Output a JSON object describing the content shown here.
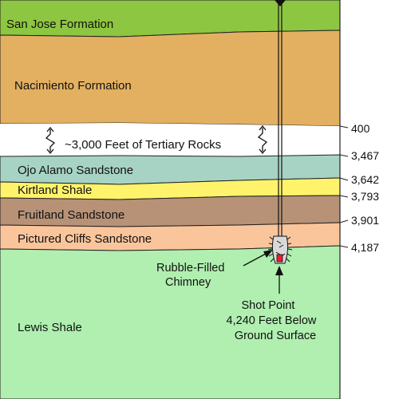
{
  "layers": [
    {
      "name": "San Jose Formation",
      "color": "#8dc640"
    },
    {
      "name": "Nacimiento Formation",
      "color": "#e3b061"
    },
    {
      "name": "~3,000 Feet of Tertiary Rocks",
      "color": "#ffffff"
    },
    {
      "name": "Ojo Alamo Sandstone",
      "color": "#a7d3c5"
    },
    {
      "name": "Kirtland Shale",
      "color": "#fff36b"
    },
    {
      "name": "Fruitland Sandstone",
      "color": "#b79277"
    },
    {
      "name": "Pictured Cliffs Sandstone",
      "color": "#fbc59c"
    },
    {
      "name": "Lewis Shale",
      "color": "#b0efb0"
    }
  ],
  "depths": [
    "400",
    "3,467",
    "3,642",
    "3,793",
    "3,901",
    "4,187"
  ],
  "chimney_label": {
    "line1": "Rubble-Filled",
    "line2": "Chimney"
  },
  "shot_point_label": {
    "line1": "Shot Point",
    "line2": "4,240 Feet Below",
    "line3": "Ground Surface"
  },
  "colors": {
    "outline": "#222222",
    "shot_point": "#e8202a",
    "rubble": "#d9d9d9"
  }
}
